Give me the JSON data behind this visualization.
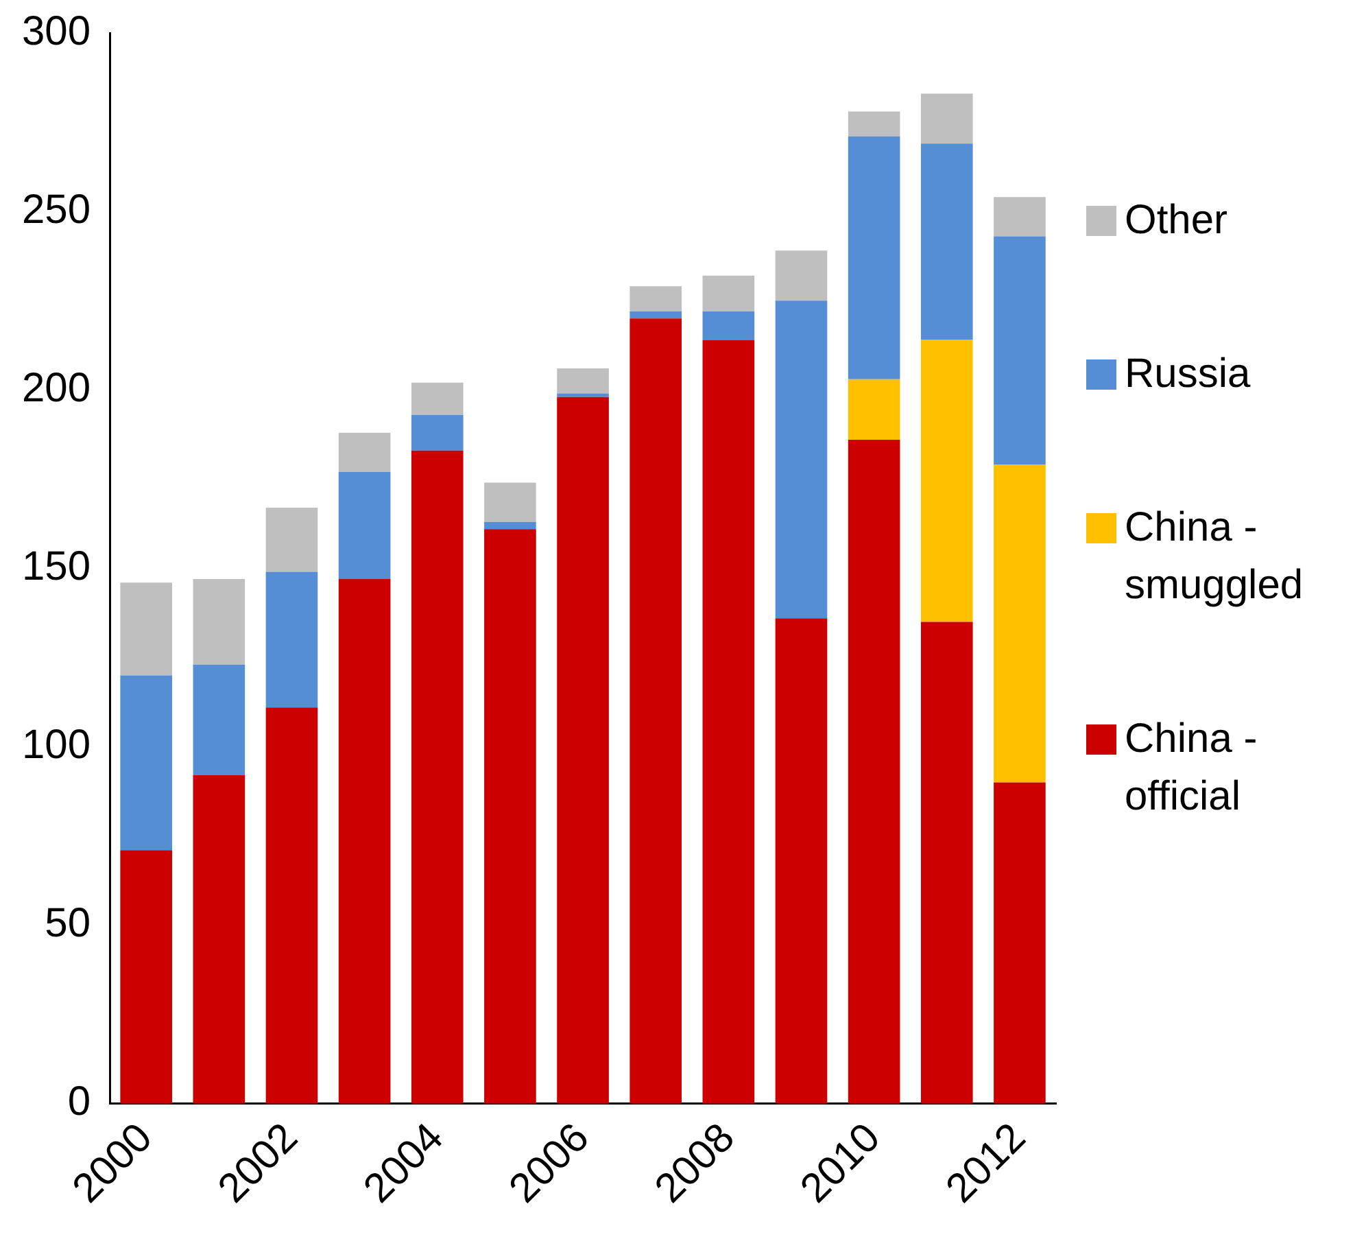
{
  "chart_data": {
    "type": "bar",
    "stacked": true,
    "categories": [
      "2000",
      null,
      "2002",
      null,
      "2004",
      null,
      "2006",
      null,
      "2008",
      null,
      "2010",
      null,
      "2012"
    ],
    "series": [
      {
        "name": "China - official",
        "color": "#cc0000",
        "values": [
          71,
          92,
          111,
          147,
          183,
          161,
          198,
          220,
          214,
          136,
          186,
          135,
          90
        ]
      },
      {
        "name": "China - smuggled",
        "color": "#ffc000",
        "values": [
          0,
          0,
          0,
          0,
          0,
          0,
          0,
          0,
          0,
          0,
          17,
          79,
          89
        ]
      },
      {
        "name": "Russia",
        "color": "#558ed5",
        "values": [
          49,
          31,
          38,
          30,
          10,
          2,
          1,
          2,
          8,
          89,
          68,
          55,
          64
        ]
      },
      {
        "name": "Other",
        "color": "#bfbfbf",
        "values": [
          26,
          24,
          18,
          11,
          9,
          11,
          7,
          7,
          10,
          14,
          7,
          14,
          11
        ]
      }
    ],
    "ylim": [
      0,
      300
    ],
    "yticks": [
      0,
      50,
      100,
      150,
      200,
      250,
      300
    ],
    "grid": false,
    "legend": "right"
  }
}
